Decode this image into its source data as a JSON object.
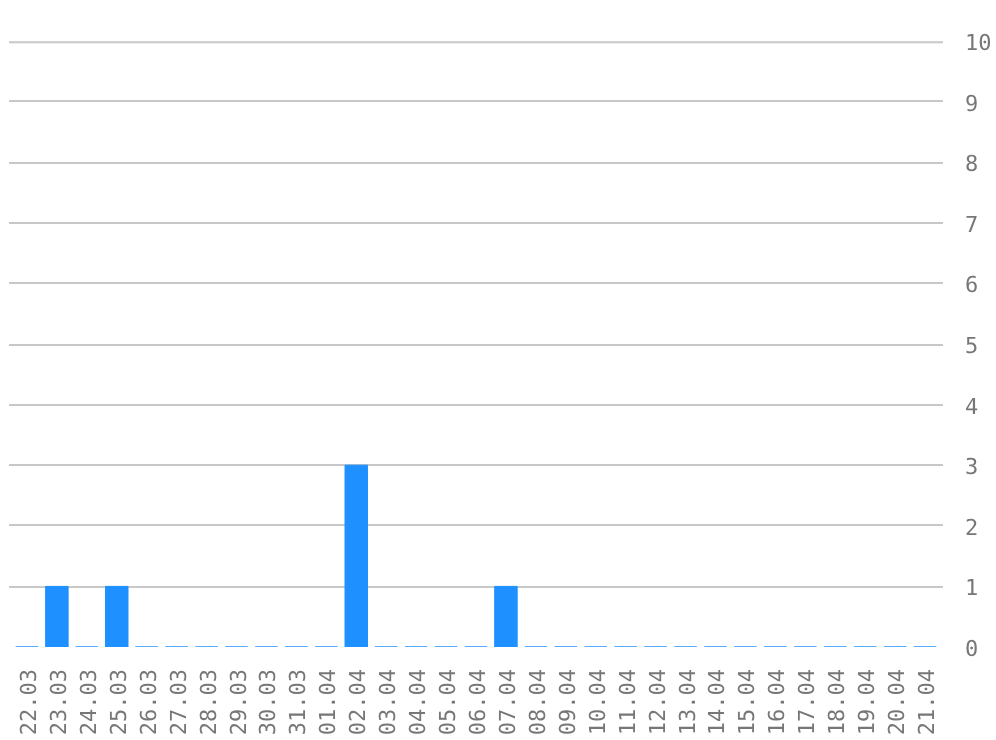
{
  "chart_data": {
    "type": "bar",
    "categories": [
      "22.03",
      "23.03",
      "24.03",
      "25.03",
      "26.03",
      "27.03",
      "28.03",
      "29.03",
      "30.03",
      "31.03",
      "01.04",
      "02.04",
      "03.04",
      "04.04",
      "05.04",
      "06.04",
      "07.04",
      "08.04",
      "09.04",
      "10.04",
      "11.04",
      "12.04",
      "13.04",
      "14.04",
      "15.04",
      "16.04",
      "17.04",
      "18.04",
      "19.04",
      "20.04",
      "21.04"
    ],
    "values": [
      0,
      1,
      0,
      1,
      0,
      0,
      0,
      0,
      0,
      0,
      0,
      3,
      0,
      0,
      0,
      0,
      1,
      0,
      0,
      0,
      0,
      0,
      0,
      0,
      0,
      0,
      0,
      0,
      0,
      0,
      0
    ],
    "color": "#1e90ff",
    "ylim": [
      0,
      10
    ],
    "yticks": [
      0,
      1,
      2,
      3,
      4,
      5,
      6,
      7,
      8,
      9,
      10
    ],
    "grid": "y"
  }
}
